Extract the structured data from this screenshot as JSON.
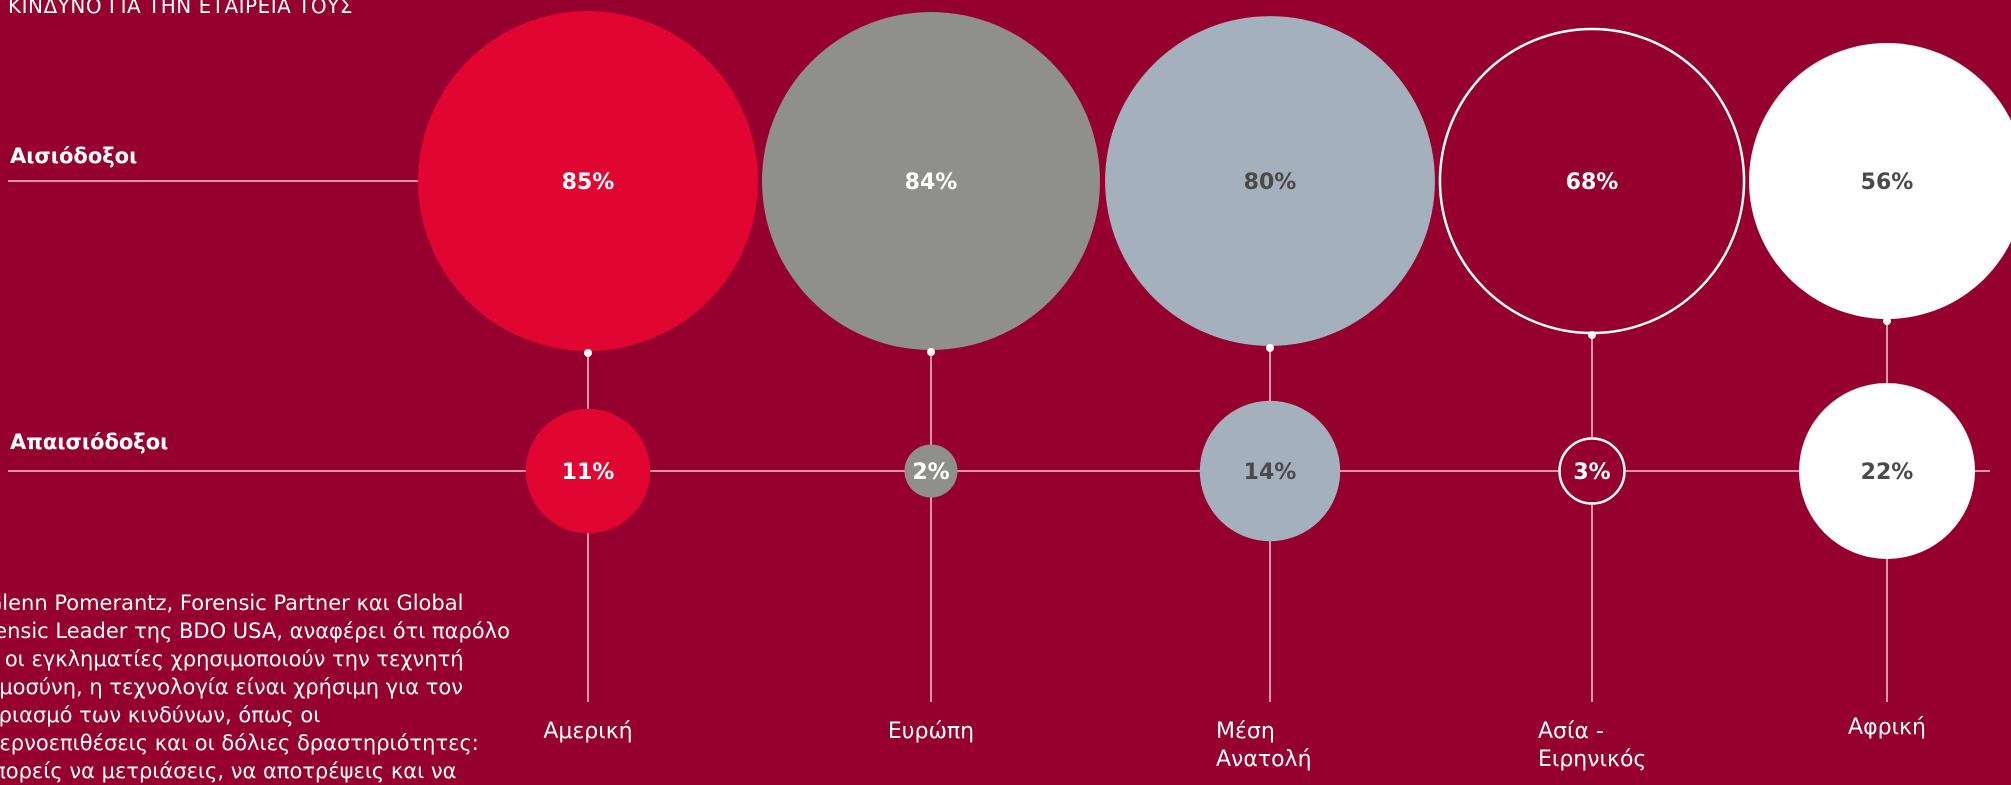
{
  "header": {
    "title_fragment": "ΚΙΝΔΥΝΟ ΓΙΑ ΤΗΝ ΕΤΑΙΡΕΙΑ ΤΟΥΣ"
  },
  "row_labels": {
    "optimists": "Αισιόδοξοι",
    "pessimists": "Απαισιόδοξοι"
  },
  "body_text": [
    "Glenn Pomerantz, Forensic Partner και Global",
    "rensic Leader της BDO USA, αναφέρει ότι παρόλο",
    "υ οι εγκληματίες χρησιμοποιούν την τεχνητή",
    "ημοσύνη, η τεχνολογία είναι χρήσιμη για τον",
    "τριασμό των κινδύνων, όπως οι",
    "βερνοεπιθέσεις και οι δόλιες δραστηριότητες:",
    "ιπορείς να μετριάσεις, να αποτρέψεις και να"
  ],
  "chart_data": {
    "type": "bubble",
    "categories": [
      "Αμερική",
      "Ευρώπη",
      "Μέση Ανατολή",
      "Ασία - Ειρηνικός",
      "Αφρική"
    ],
    "series": [
      {
        "name": "Αισιόδοξοι",
        "values": [
          85,
          84,
          80,
          68,
          56
        ],
        "labels": [
          "85%",
          "84%",
          "80%",
          "68%",
          "56%"
        ]
      },
      {
        "name": "Απαισιόδοξοι",
        "values": [
          11,
          2,
          14,
          3,
          22
        ],
        "labels": [
          "11%",
          "2%",
          "14%",
          "3%",
          "22%"
        ]
      }
    ],
    "colors": {
      "background": "#96002e",
      "Αμερική": "#e10531",
      "Ευρώπη": "#8f8f8b",
      "Μέση Ανατολή": "#a4b0bb",
      "Ασία - Ειρηνικός": "outline-white",
      "Αφρική": "#ffffff",
      "line": "#f2c9d3",
      "dark_text": "#4a4a4a",
      "light_text": "#ffffff"
    }
  }
}
